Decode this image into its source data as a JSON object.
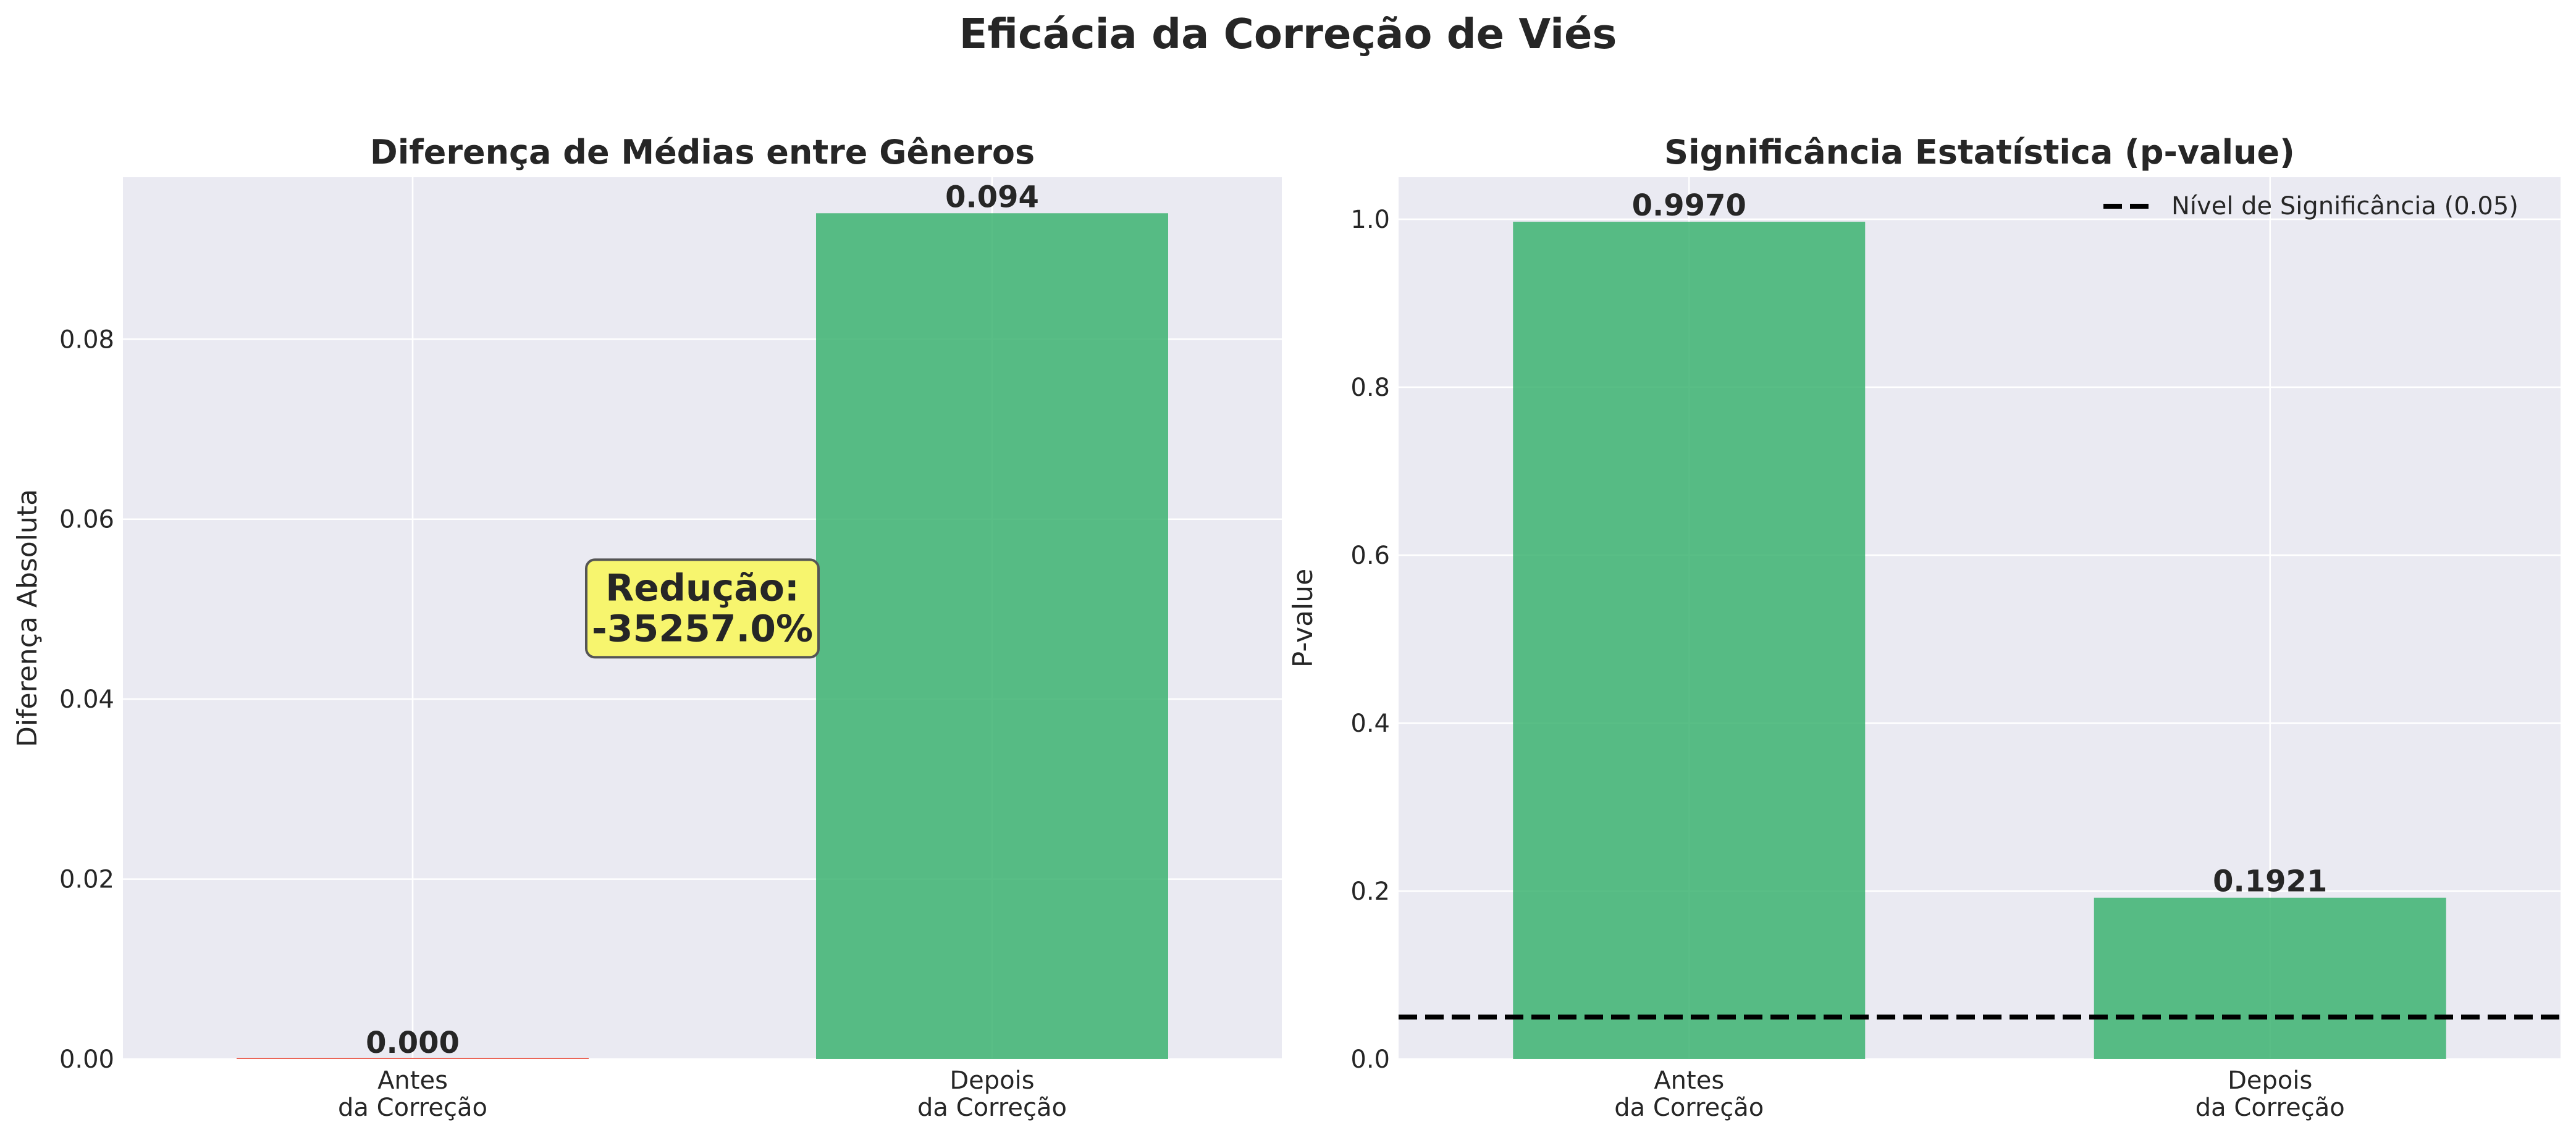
{
  "figure": {
    "title": "Eficácia da Correção de Viés",
    "colors": {
      "panel_background": "#eaeaf2",
      "grid": "#ffffff",
      "bar_green": "#3cb371",
      "bar_red": "#e74c3c",
      "annotation_fill": "#f7f56e",
      "text": "#262626"
    }
  },
  "chart_data": [
    {
      "type": "bar",
      "title": "Diferença de Médias entre Gêneros",
      "xlabel": "",
      "ylabel": "Diferença Absoluta",
      "categories": [
        "Antes\nda Correção",
        "Depois\nda Correção"
      ],
      "values": [
        0.0,
        0.094
      ],
      "value_labels": [
        "0.000",
        "0.094"
      ],
      "bar_colors": [
        "#e74c3c",
        "#3cb371"
      ],
      "ylim": [
        0,
        0.098
      ],
      "yticks": [
        0.0,
        0.02,
        0.04,
        0.06,
        0.08
      ],
      "ytick_labels": [
        "0.00",
        "0.02",
        "0.04",
        "0.06",
        "0.08"
      ],
      "grid": true,
      "annotation": {
        "text": "Redução:\n-35257.0%",
        "x": 0.5,
        "y": 0.05
      }
    },
    {
      "type": "bar",
      "title": "Significância Estatística (p-value)",
      "xlabel": "",
      "ylabel": "P-value",
      "categories": [
        "Antes\nda Correção",
        "Depois\nda Correção"
      ],
      "values": [
        0.997,
        0.1921
      ],
      "value_labels": [
        "0.9970",
        "0.1921"
      ],
      "bar_colors": [
        "#3cb371",
        "#3cb371"
      ],
      "ylim": [
        0,
        1.05
      ],
      "yticks": [
        0.0,
        0.2,
        0.4,
        0.6,
        0.8,
        1.0
      ],
      "ytick_labels": [
        "0.0",
        "0.2",
        "0.4",
        "0.6",
        "0.8",
        "1.0"
      ],
      "grid": true,
      "reference_line": {
        "y": 0.05,
        "style": "dashed",
        "color": "#000000",
        "label": "Nível de Significância (0.05)"
      },
      "legend": {
        "position": "upper right",
        "entries": [
          "Nível de Significância (0.05)"
        ]
      }
    }
  ]
}
